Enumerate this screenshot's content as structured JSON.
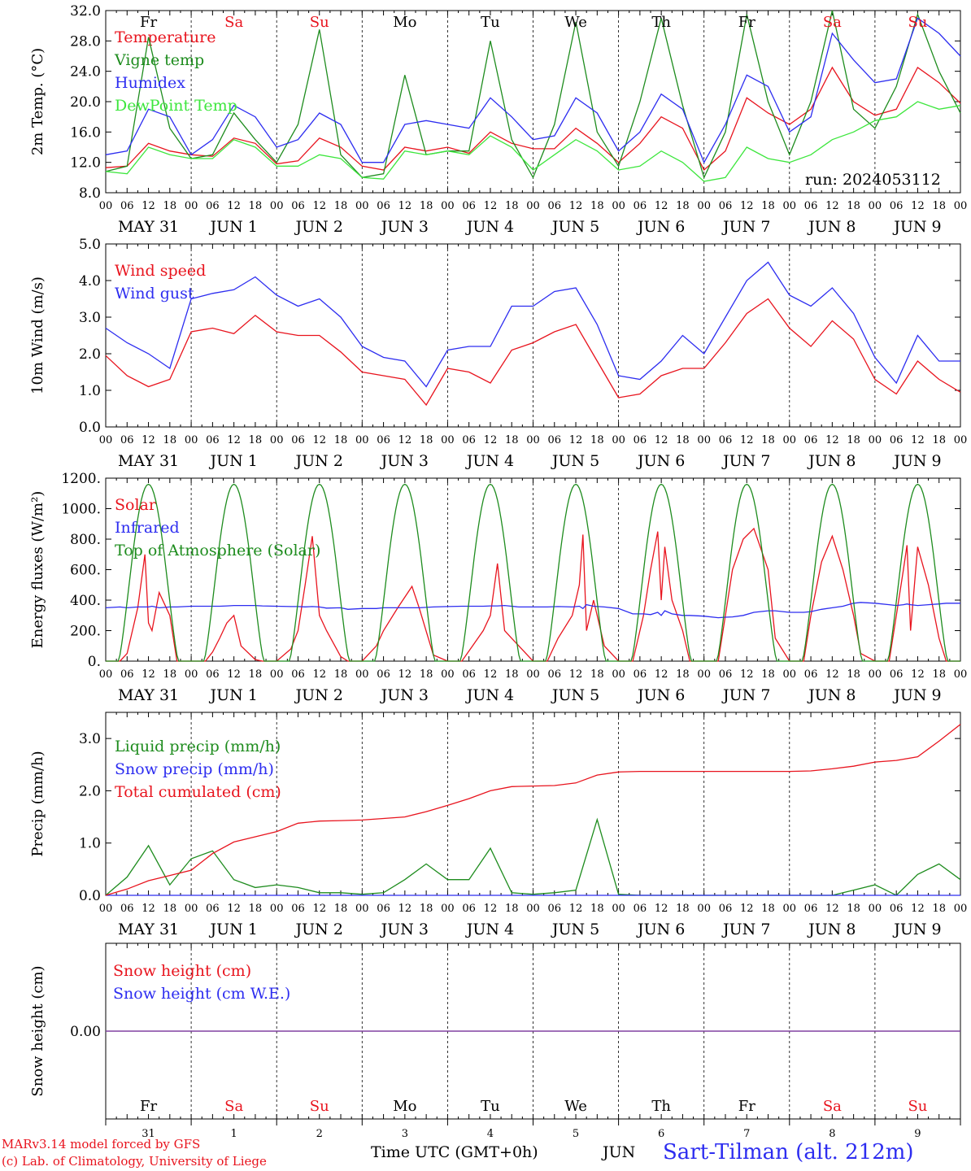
{
  "run_label": "run: 2024053112",
  "footer": {
    "credit_line1": "MARv3.14 model forced by GFS",
    "credit_line2": "(c) Lab. of Climatology, University of Liege",
    "x_axis_title": "Time UTC (GMT+0h)",
    "month_label": "JUN",
    "station": "Sart-Tilman (alt. 212m)"
  },
  "colors": {
    "red": "#e8141e",
    "green": "#1e8c1e",
    "blue": "#2d2df0",
    "lightgreen": "#3de63d",
    "purple": "#7b3a9c",
    "weekend": "#e8141e",
    "weekday": "#000000"
  },
  "days": [
    {
      "abbr": "Fr",
      "date_label": "MAY 31",
      "day_num": "31",
      "weekend": false
    },
    {
      "abbr": "Sa",
      "date_label": "JUN  1",
      "day_num": "1",
      "weekend": true
    },
    {
      "abbr": "Su",
      "date_label": "JUN  2",
      "day_num": "2",
      "weekend": true
    },
    {
      "abbr": "Mo",
      "date_label": "JUN  3",
      "day_num": "3",
      "weekend": false
    },
    {
      "abbr": "Tu",
      "date_label": "JUN  4",
      "day_num": "4",
      "weekend": false
    },
    {
      "abbr": "We",
      "date_label": "JUN  5",
      "day_num": "5",
      "weekend": false
    },
    {
      "abbr": "Th",
      "date_label": "JUN  6",
      "day_num": "6",
      "weekend": false
    },
    {
      "abbr": "Fr",
      "date_label": "JUN  7",
      "day_num": "7",
      "weekend": false
    },
    {
      "abbr": "Sa",
      "date_label": "JUN  8",
      "day_num": "8",
      "weekend": true
    },
    {
      "abbr": "Su",
      "date_label": "JUN  9",
      "day_num": "9",
      "weekend": true
    }
  ],
  "hour_ticks": [
    "00",
    "06",
    "12",
    "18"
  ],
  "hour_tick_final": "00",
  "chart_data": [
    {
      "type": "line",
      "ylabel": "2m Temp. (°C)",
      "ylim": [
        8,
        32
      ],
      "yticks": [
        8,
        12,
        16,
        20,
        24,
        28,
        32
      ],
      "ytick_labels": [
        "8.0",
        "12.0",
        "16.0",
        "20.0",
        "24.0",
        "28.0",
        "32.0"
      ],
      "show_day_abbr": true,
      "x_hours": [
        0,
        6,
        12,
        18,
        24,
        30,
        36,
        42,
        48,
        54,
        60,
        66,
        72,
        78,
        84,
        90,
        96,
        102,
        108,
        114,
        120,
        126,
        132,
        138,
        144,
        150,
        156,
        162,
        168,
        174,
        180,
        186,
        192,
        198,
        204,
        210,
        216,
        222,
        228,
        234,
        240
      ],
      "series": [
        {
          "name": "Temperature",
          "color": "red",
          "values": [
            11.3,
            11.5,
            14.5,
            13.5,
            13,
            12.8,
            15.2,
            14.5,
            11.8,
            12.2,
            15.2,
            14,
            11.5,
            11,
            14,
            13.5,
            14,
            13.2,
            16,
            14.5,
            13.8,
            13.8,
            16.5,
            14.5,
            12,
            14.5,
            18,
            16.5,
            11,
            13.5,
            20.5,
            18.5,
            17,
            19,
            24.5,
            20,
            18.2,
            19,
            24.5,
            22.5,
            19.8
          ]
        },
        {
          "name": "Vigne temp",
          "color": "green",
          "values": [
            10.8,
            11.5,
            28.5,
            16.5,
            12.5,
            13,
            18.5,
            15,
            12,
            17,
            29.5,
            13,
            10,
            10.5,
            23.5,
            13,
            13.5,
            13.5,
            28,
            15,
            10,
            17,
            30.5,
            16,
            11.5,
            20,
            31,
            19.5,
            10,
            16,
            31.5,
            20,
            13,
            20,
            32,
            19,
            16.5,
            22,
            31.5,
            24,
            18.5
          ]
        },
        {
          "name": "Humidex",
          "color": "blue",
          "values": [
            13,
            13.5,
            19,
            18,
            13,
            15,
            19.5,
            18,
            14,
            15,
            18.5,
            17,
            12,
            12,
            17,
            17.5,
            17,
            16.5,
            20.5,
            18,
            15,
            15.5,
            20.5,
            18.5,
            13.5,
            16,
            21,
            19,
            12,
            17,
            23.5,
            22,
            16,
            18,
            29,
            25.5,
            22.5,
            23,
            31,
            29,
            26
          ]
        },
        {
          "name": "DewPoint Temp",
          "color": "lightgreen",
          "values": [
            10.8,
            10.5,
            14,
            13,
            12.5,
            12.5,
            15,
            14,
            11.5,
            11.5,
            13,
            12.5,
            10,
            9.8,
            13.5,
            13,
            13.5,
            13,
            15.5,
            14,
            11,
            13,
            15,
            13.5,
            11,
            11.5,
            13.5,
            12,
            9.5,
            10,
            14,
            12.5,
            12,
            13,
            15,
            16,
            17.5,
            18,
            20,
            19,
            19.5
          ]
        }
      ]
    },
    {
      "type": "line",
      "ylabel": "10m Wind (m/s)",
      "ylim": [
        0,
        5
      ],
      "yticks": [
        0,
        1,
        2,
        3,
        4,
        5
      ],
      "ytick_labels": [
        "0.0",
        "1.0",
        "2.0",
        "3.0",
        "4.0",
        "5.0"
      ],
      "x_hours": [
        0,
        6,
        12,
        18,
        24,
        30,
        36,
        42,
        48,
        54,
        60,
        66,
        72,
        78,
        84,
        90,
        96,
        102,
        108,
        114,
        120,
        126,
        132,
        138,
        144,
        150,
        156,
        162,
        168,
        174,
        180,
        186,
        192,
        198,
        204,
        210,
        216,
        222,
        228,
        234,
        240
      ],
      "series": [
        {
          "name": "Wind speed",
          "color": "red",
          "values": [
            1.95,
            1.4,
            1.1,
            1.3,
            2.6,
            2.7,
            2.55,
            3.05,
            2.6,
            2.5,
            2.5,
            2.05,
            1.5,
            1.4,
            1.3,
            0.6,
            1.6,
            1.5,
            1.2,
            2.1,
            2.3,
            2.6,
            2.8,
            1.8,
            0.8,
            0.9,
            1.4,
            1.6,
            1.6,
            2.3,
            3.1,
            3.5,
            2.7,
            2.2,
            2.9,
            2.4,
            1.3,
            0.9,
            1.8,
            1.3,
            0.95
          ]
        },
        {
          "name": "Wind gust",
          "color": "blue",
          "values": [
            2.7,
            2.3,
            2.0,
            1.6,
            3.5,
            3.65,
            3.75,
            4.1,
            3.6,
            3.3,
            3.5,
            3.0,
            2.2,
            1.9,
            1.8,
            1.1,
            2.1,
            2.2,
            2.2,
            3.3,
            3.3,
            3.7,
            3.8,
            2.8,
            1.4,
            1.3,
            1.8,
            2.5,
            2.0,
            3.0,
            4.0,
            4.5,
            3.6,
            3.3,
            3.8,
            3.1,
            1.9,
            1.2,
            2.5,
            1.8,
            1.8
          ]
        }
      ]
    },
    {
      "type": "line",
      "ylabel": "Energy fluxes (W/m²)",
      "ylim": [
        0,
        1200
      ],
      "yticks": [
        0,
        200,
        400,
        600,
        800,
        1000,
        1200
      ],
      "ytick_labels": [
        "0.",
        "200.",
        "400.",
        "600.",
        "800.",
        "1000.",
        "1200."
      ],
      "x_hours": [
        0,
        4,
        6,
        9,
        11,
        12,
        13,
        15,
        18,
        20,
        24,
        28,
        30,
        32,
        34,
        36,
        38,
        42,
        44,
        48,
        52,
        54,
        56,
        58,
        60,
        62,
        66,
        68,
        72,
        76,
        78,
        82,
        86,
        88,
        92,
        96,
        100,
        103,
        106,
        108,
        110,
        112,
        114,
        116,
        120,
        124,
        127,
        131,
        133,
        134,
        135,
        137,
        140,
        144,
        148,
        151,
        153,
        155,
        156,
        157,
        159,
        162,
        164,
        168,
        172,
        174,
        176,
        179,
        182,
        186,
        188,
        192,
        196,
        198,
        201,
        204,
        207,
        210,
        212,
        216,
        220,
        222,
        224,
        225,
        226,
        228,
        231,
        234,
        236,
        240
      ],
      "series": [
        {
          "name": "Solar",
          "color": "red",
          "values": [
            0,
            0,
            50,
            350,
            700,
            250,
            200,
            450,
            300,
            0,
            0,
            0,
            60,
            150,
            250,
            300,
            100,
            10,
            0,
            0,
            80,
            200,
            500,
            820,
            300,
            200,
            30,
            0,
            0,
            100,
            200,
            350,
            490,
            350,
            40,
            0,
            0,
            100,
            200,
            300,
            640,
            200,
            150,
            100,
            0,
            0,
            150,
            300,
            500,
            830,
            200,
            400,
            100,
            0,
            0,
            300,
            600,
            850,
            400,
            750,
            400,
            200,
            0,
            0,
            0,
            300,
            600,
            800,
            870,
            600,
            150,
            0,
            0,
            300,
            650,
            820,
            600,
            300,
            50,
            0,
            0,
            300,
            600,
            760,
            200,
            750,
            500,
            150,
            0,
            0
          ]
        },
        {
          "name": "Infrared",
          "color": "blue",
          "values": [
            350,
            355,
            350,
            355,
            355,
            355,
            360,
            350,
            355,
            355,
            360,
            360,
            360,
            360,
            362,
            365,
            365,
            365,
            362,
            360,
            358,
            358,
            356,
            358,
            355,
            348,
            350,
            340,
            345,
            345,
            350,
            350,
            350,
            350,
            355,
            358,
            360,
            360,
            360,
            362,
            362,
            365,
            360,
            355,
            355,
            355,
            358,
            355,
            360,
            345,
            370,
            360,
            355,
            345,
            310,
            310,
            305,
            320,
            300,
            330,
            310,
            300,
            300,
            295,
            285,
            288,
            290,
            300,
            320,
            330,
            330,
            320,
            320,
            325,
            340,
            350,
            360,
            380,
            385,
            380,
            370,
            365,
            370,
            375,
            370,
            365,
            370,
            375,
            380,
            380
          ]
        },
        {
          "name": "Top of Atmosphere (Solar)",
          "color": "green",
          "smooth": "diurnal",
          "values": []
        }
      ]
    },
    {
      "type": "line",
      "ylabel": "Precip (mm/h)",
      "ylim": [
        0,
        3.5
      ],
      "yticks": [
        0,
        1,
        2,
        3
      ],
      "ytick_labels": [
        "0.0",
        "1.0",
        "2.0",
        "3.0"
      ],
      "x_hours": [
        0,
        6,
        12,
        18,
        24,
        30,
        36,
        42,
        48,
        54,
        60,
        66,
        72,
        78,
        84,
        90,
        96,
        102,
        108,
        114,
        120,
        126,
        132,
        138,
        144,
        150,
        156,
        162,
        168,
        174,
        180,
        186,
        192,
        198,
        204,
        210,
        216,
        222,
        228,
        234,
        240
      ],
      "series": [
        {
          "name": "Liquid precip (mm/h)",
          "color": "green",
          "values": [
            0,
            0.35,
            0.95,
            0.2,
            0.7,
            0.85,
            0.3,
            0.15,
            0.2,
            0.15,
            0.05,
            0.05,
            0.02,
            0.05,
            0.3,
            0.6,
            0.3,
            0.3,
            0.9,
            0.05,
            0.02,
            0.05,
            0.1,
            1.45,
            0.02,
            0,
            0,
            0,
            0,
            0,
            0,
            0,
            0,
            0,
            0,
            0.1,
            0.2,
            0,
            0.4,
            0.6,
            0.3
          ]
        },
        {
          "name": "Snow precip (mm/h)",
          "color": "blue",
          "values": [
            0,
            0,
            0,
            0,
            0,
            0,
            0,
            0,
            0,
            0,
            0,
            0,
            0,
            0,
            0,
            0,
            0,
            0,
            0,
            0,
            0,
            0,
            0,
            0,
            0,
            0,
            0,
            0,
            0,
            0,
            0,
            0,
            0,
            0,
            0,
            0,
            0,
            0,
            0,
            0,
            0
          ]
        },
        {
          "name": "Total cumulated (cm)",
          "color": "red",
          "values": [
            0,
            0.12,
            0.28,
            0.38,
            0.48,
            0.8,
            1.02,
            1.12,
            1.22,
            1.38,
            1.42,
            1.43,
            1.44,
            1.47,
            1.5,
            1.6,
            1.72,
            1.85,
            2.0,
            2.08,
            2.09,
            2.1,
            2.15,
            2.3,
            2.36,
            2.37,
            2.37,
            2.37,
            2.37,
            2.37,
            2.37,
            2.37,
            2.37,
            2.38,
            2.42,
            2.47,
            2.55,
            2.58,
            2.65,
            2.95,
            3.27
          ]
        }
      ]
    },
    {
      "type": "line",
      "ylabel": "Snow height (cm)",
      "ytick_labels": [
        "0.00"
      ],
      "show_day_abbr_bottom": true,
      "x_hours": [
        0,
        240
      ],
      "series": [
        {
          "name": "Snow height (cm)",
          "color": "red",
          "values": [
            0,
            0
          ]
        },
        {
          "name": "Snow height (cm W.E.)",
          "color": "blue",
          "values": [
            0,
            0
          ]
        }
      ]
    }
  ]
}
